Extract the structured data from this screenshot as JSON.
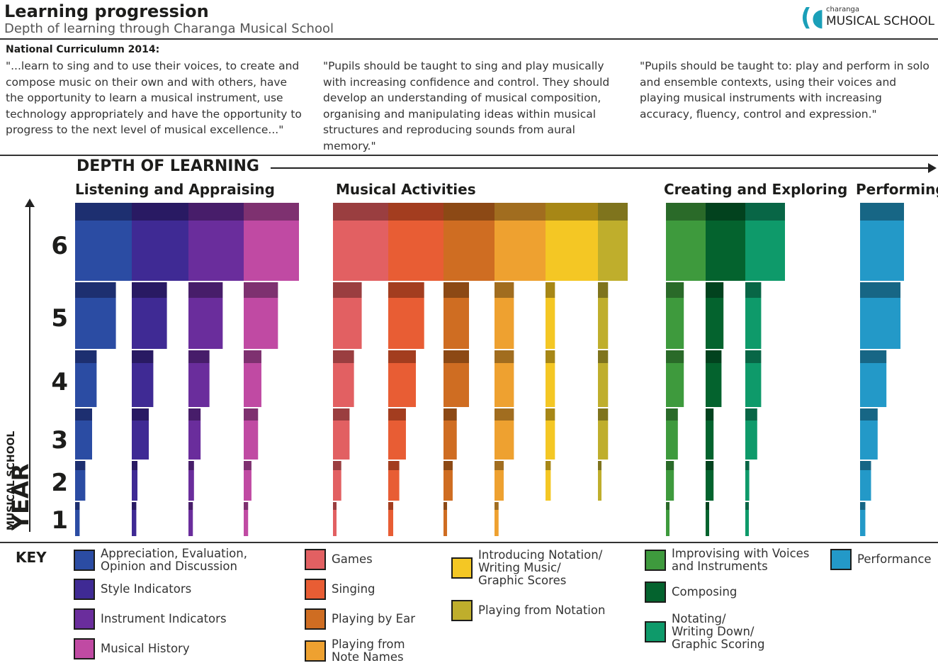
{
  "header": {
    "title": "Learning progression",
    "subtitle": "Depth of learning through Charanga Musical School",
    "logo_small": "charanga",
    "logo_big": "MUSICAL SCHOOL"
  },
  "curriculum": {
    "heading": "National Curriculumn 2014:",
    "quotes": [
      "\"...learn to sing and to use their voices, to create and compose music on their own and with others, have the opportunity to learn a musical instrument, use technology appropriately and have the opportunity to progress to the next level of musical excellence...\"",
      "\"Pupils should be taught to sing and play musically with increasing confidence and control. They should develop an understanding of musical composition, organising and manipulating ideas within musical structures and reproducing sounds from aural memory.\"",
      "\"Pupils should be taught to: play and perform in solo and ensemble contexts, using their voices and playing musical instruments with increasing accuracy, fluency, control and expression.\""
    ]
  },
  "axis": {
    "x_label": "DEPTH OF LEARNING",
    "y_label_small": "MUSICAL SCHOOL",
    "y_label_big": "YEAR"
  },
  "key": {
    "title": "KEY"
  },
  "chart_data": {
    "type": "bar",
    "title": "Learning progression",
    "xlabel": "DEPTH OF LEARNING",
    "ylabel": "MUSICAL SCHOOL YEAR",
    "years": [
      "1",
      "2",
      "3",
      "4",
      "5",
      "6"
    ],
    "groups": [
      {
        "name": "Listening and Appraising",
        "series_index": [
          0,
          1,
          2,
          3
        ]
      },
      {
        "name": "Musical Activities",
        "series_index": [
          4,
          5,
          6,
          7,
          8,
          9
        ]
      },
      {
        "name": "Creating and Exploring",
        "series_index": [
          10,
          11,
          12
        ]
      },
      {
        "name": "Performing",
        "series_index": [
          13
        ]
      }
    ],
    "series": [
      {
        "name": "Appreciation, Evaluation, Opinion and Discussion",
        "color": "#2b4ca3",
        "dark": "#1d2f70",
        "values": [
          0.08,
          0.18,
          0.3,
          0.38,
          0.72,
          1.0
        ]
      },
      {
        "name": "Style Indicators",
        "color": "#3f2a94",
        "dark": "#291a63",
        "values": [
          0.08,
          0.1,
          0.3,
          0.38,
          0.62,
          1.0
        ]
      },
      {
        "name": "Instrument Indicators",
        "color": "#6a2d9c",
        "dark": "#471d6a",
        "values": [
          0.08,
          0.1,
          0.22,
          0.38,
          0.62,
          1.0
        ]
      },
      {
        "name": "Musical History",
        "color": "#c04aa3",
        "dark": "#7e3170",
        "values": [
          0.08,
          0.14,
          0.26,
          0.32,
          0.62,
          1.0
        ]
      },
      {
        "name": "Games",
        "color": "#e26062",
        "dark": "#9a3e40",
        "values": [
          0.06,
          0.15,
          0.3,
          0.38,
          0.52,
          1.0
        ]
      },
      {
        "name": "Singing",
        "color": "#e85d34",
        "dark": "#a33d1f",
        "values": [
          0.09,
          0.2,
          0.32,
          0.5,
          0.65,
          1.0
        ]
      },
      {
        "name": "Playing by Ear",
        "color": "#cf6d22",
        "dark": "#8c4915",
        "values": [
          0.07,
          0.18,
          0.26,
          0.5,
          0.5,
          1.0
        ]
      },
      {
        "name": "Playing from Note Names",
        "color": "#eea130",
        "dark": "#a16d1f",
        "values": [
          0.08,
          0.18,
          0.38,
          0.38,
          0.38,
          1.0
        ]
      },
      {
        "name": "Introducing Notation/ Writing Music/ Graphic Scores",
        "color": "#f4c724",
        "dark": "#a78716",
        "values": [
          0.0,
          0.1,
          0.18,
          0.18,
          0.18,
          1.0
        ]
      },
      {
        "name": "Playing from Notation",
        "color": "#bfae2c",
        "dark": "#7f741d",
        "values": [
          0.0,
          0.1,
          0.34,
          0.34,
          0.34,
          1.0
        ]
      },
      {
        "name": "Improvising with Voices and Instruments",
        "color": "#3e9a3d",
        "dark": "#2a6a29",
        "values": [
          0.04,
          0.2,
          0.3,
          0.45,
          0.45,
          1.0
        ]
      },
      {
        "name": "Composing",
        "color": "#04632e",
        "dark": "#02421e",
        "values": [
          0.04,
          0.2,
          0.2,
          0.4,
          0.45,
          1.0
        ]
      },
      {
        "name": "Notating/ Writing Down/ Graphic Scoring",
        "color": "#0e9a6a",
        "dark": "#086646",
        "values": [
          0.04,
          0.1,
          0.3,
          0.4,
          0.4,
          1.0
        ]
      },
      {
        "name": "Performance",
        "color": "#2399c8",
        "dark": "#176685",
        "values": [
          0.12,
          0.25,
          0.4,
          0.6,
          0.92,
          1.0
        ]
      }
    ]
  }
}
